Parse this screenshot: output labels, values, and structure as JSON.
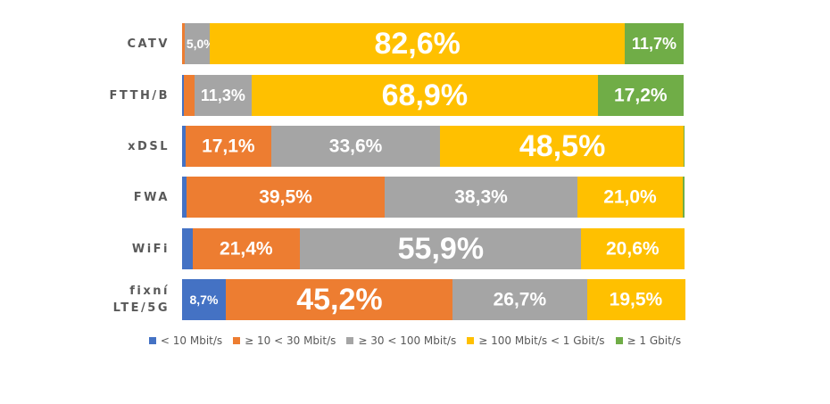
{
  "chart_data": {
    "type": "bar",
    "orientation": "horizontal",
    "stacked": true,
    "normalized": true,
    "categories": [
      "CATV",
      "FTTH/B",
      "xDSL",
      "FWA",
      "WiFi",
      "fixní LTE/5G"
    ],
    "category_lines": [
      [
        "CATV"
      ],
      [
        "FTTH/B"
      ],
      [
        "xDSL"
      ],
      [
        "FWA"
      ],
      [
        "WiFi"
      ],
      [
        "fixní",
        "LTE/5G"
      ]
    ],
    "series": [
      {
        "name": "< 10 Mbit/s",
        "color": "#4472C4",
        "values": [
          0.0,
          0.3,
          0.7,
          0.9,
          2.1,
          8.7
        ],
        "labels": [
          "",
          "",
          "",
          "",
          "",
          "8,7%"
        ]
      },
      {
        "name": "≥ 10 < 30 Mbit/s",
        "color": "#ED7D31",
        "values": [
          0.5,
          2.2,
          17.1,
          39.5,
          21.4,
          45.2
        ],
        "labels": [
          "",
          "",
          "17,1%",
          "39,5%",
          "21,4%",
          "45,2%"
        ]
      },
      {
        "name": "≥ 30 < 100 Mbit/s",
        "color": "#A5A5A5",
        "values": [
          5.0,
          11.3,
          33.6,
          38.3,
          55.9,
          26.7
        ],
        "labels": [
          "5,0%",
          "11,3%",
          "33,6%",
          "38,3%",
          "55,9%",
          "26,7%"
        ]
      },
      {
        "name": "≥ 100 Mbit/s < 1 Gbit/s",
        "color": "#FFC000",
        "values": [
          82.6,
          68.9,
          48.5,
          21.0,
          20.6,
          19.5
        ],
        "labels": [
          "82,6%",
          "68,9%",
          "48,5%",
          "21,0%",
          "20,6%",
          "19,5%"
        ]
      },
      {
        "name": "≥ 1 Gbit/s",
        "color": "#70AD47",
        "values": [
          11.7,
          17.2,
          0.1,
          0.3,
          0.0,
          0.0
        ],
        "labels": [
          "11,7%",
          "17,2%",
          "",
          "",
          "",
          ""
        ]
      }
    ],
    "xlim": [
      0,
      100
    ],
    "legend_position": "bottom",
    "grid": false
  }
}
